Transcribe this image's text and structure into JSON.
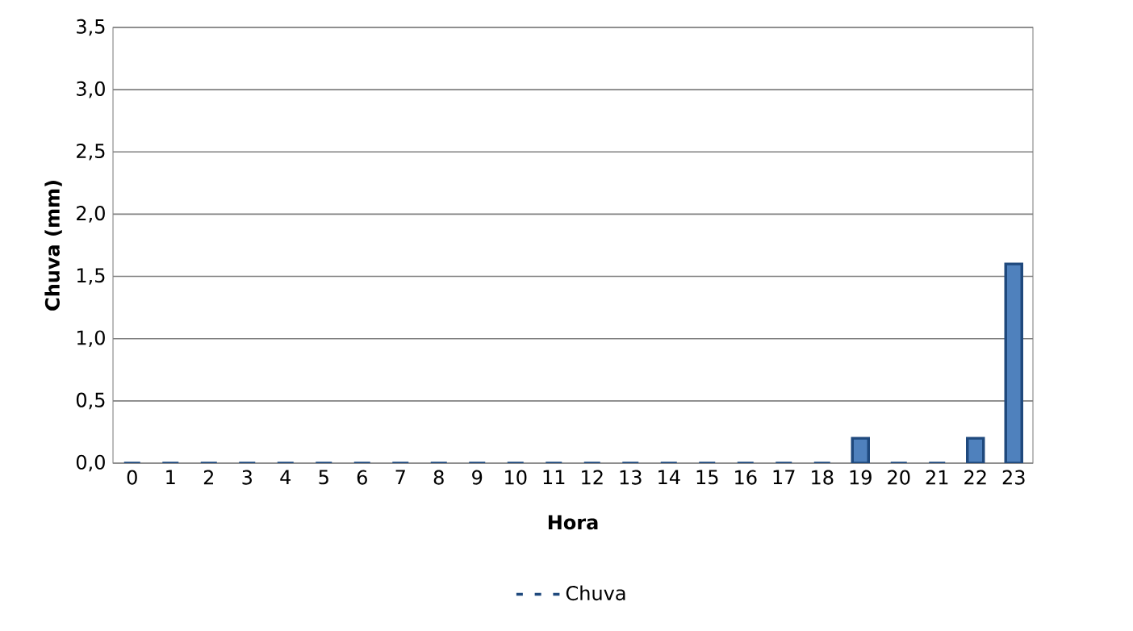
{
  "chart_data": {
    "type": "bar",
    "xlabel": "Hora",
    "ylabel": "Chuva (mm)",
    "categories": [
      "0",
      "1",
      "2",
      "3",
      "4",
      "5",
      "6",
      "7",
      "8",
      "9",
      "10",
      "11",
      "12",
      "13",
      "14",
      "15",
      "16",
      "17",
      "18",
      "19",
      "20",
      "21",
      "22",
      "23"
    ],
    "series": [
      {
        "name": "Chuva",
        "color": "#4f81bd",
        "values": [
          0,
          0,
          0,
          0,
          0,
          0,
          0,
          0,
          0,
          0,
          0,
          0,
          0,
          0,
          0,
          0,
          0,
          0,
          0,
          0.2,
          0,
          0,
          0.2,
          1.6
        ]
      }
    ],
    "ylim": [
      0,
      3.5
    ],
    "yticks": [
      {
        "value": 0,
        "label": "0,0"
      },
      {
        "value": 0.5,
        "label": "0,5"
      },
      {
        "value": 1,
        "label": "1,0"
      },
      {
        "value": 1.5,
        "label": "1,5"
      },
      {
        "value": 2,
        "label": "2,0"
      },
      {
        "value": 2.5,
        "label": "2,5"
      },
      {
        "value": 3,
        "label": "3,0"
      },
      {
        "value": 3.5,
        "label": "3,5"
      }
    ],
    "grid": "y",
    "legend": "bottom"
  }
}
